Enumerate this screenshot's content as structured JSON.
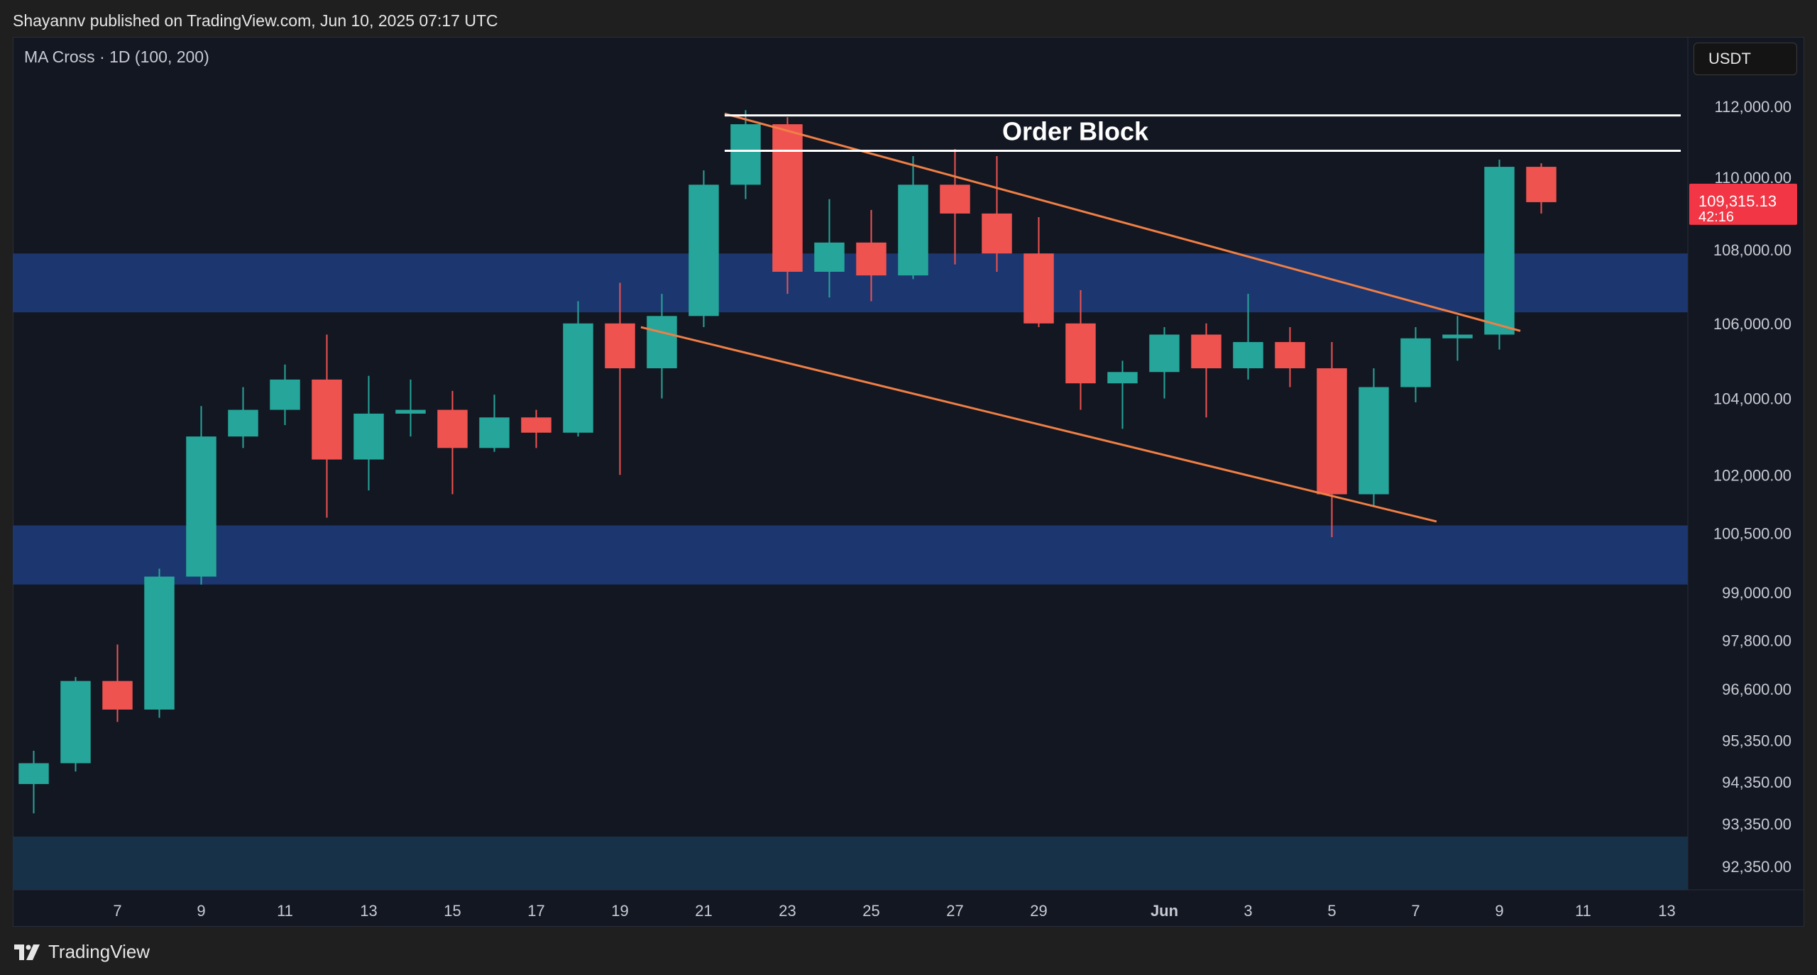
{
  "header": {
    "publisher_line": "Shayannv published on TradingView.com, Jun 10, 2025 07:17 UTC"
  },
  "indicator": {
    "label": "MA Cross · 1D (100, 200)"
  },
  "currency": {
    "label": "USDT"
  },
  "footer": {
    "brand": "TradingView"
  },
  "colors": {
    "background": "#131722",
    "bull": "#26a69a",
    "bear": "#ef5350",
    "zone": "#1e3a78",
    "lower_zone": "#17344d",
    "trendline": "#f07f45",
    "order_block_line": "#ffffff",
    "price_tag": "#f23645"
  },
  "chart_data": {
    "type": "candlestick",
    "title": "",
    "xlabel": "",
    "ylabel": "",
    "y_scale": "log",
    "ylim": [
      91800,
      114000
    ],
    "x_range": [
      "2025-05-05",
      "2025-06-14"
    ],
    "price_ticks": [
      "112,000.00",
      "110,000.00",
      "108,000.00",
      "106,000.00",
      "104,000.00",
      "102,000.00",
      "100,500.00",
      "99,000.00",
      "97,800.00",
      "96,600.00",
      "95,350.00",
      "94,350.00",
      "93,350.00",
      "92,350.00"
    ],
    "price_tick_values": [
      112000,
      110000,
      108000,
      106000,
      104000,
      102000,
      100500,
      99000,
      97800,
      96600,
      95350,
      94350,
      93350,
      92350
    ],
    "date_ticks": [
      {
        "date": "2025-05-07",
        "label": "7"
      },
      {
        "date": "2025-05-09",
        "label": "9"
      },
      {
        "date": "2025-05-11",
        "label": "11"
      },
      {
        "date": "2025-05-13",
        "label": "13"
      },
      {
        "date": "2025-05-15",
        "label": "15"
      },
      {
        "date": "2025-05-17",
        "label": "17"
      },
      {
        "date": "2025-05-19",
        "label": "19"
      },
      {
        "date": "2025-05-21",
        "label": "21"
      },
      {
        "date": "2025-05-23",
        "label": "23"
      },
      {
        "date": "2025-05-25",
        "label": "25"
      },
      {
        "date": "2025-05-27",
        "label": "27"
      },
      {
        "date": "2025-05-29",
        "label": "29"
      },
      {
        "date": "2025-06-01",
        "label": "Jun"
      },
      {
        "date": "2025-06-03",
        "label": "3"
      },
      {
        "date": "2025-06-05",
        "label": "5"
      },
      {
        "date": "2025-06-07",
        "label": "7"
      },
      {
        "date": "2025-06-09",
        "label": "9"
      },
      {
        "date": "2025-06-11",
        "label": "11"
      },
      {
        "date": "2025-06-13",
        "label": "13"
      }
    ],
    "last_price": {
      "label": "109,315.13",
      "value": 109315.13,
      "countdown": "42:16"
    },
    "annotations": [
      {
        "text": "Order Block"
      }
    ],
    "zones": [
      {
        "name": "upper-supply",
        "low": 106300,
        "high": 107900
      },
      {
        "name": "demand",
        "low": 99200,
        "high": 100700
      },
      {
        "name": "lower-demand",
        "low": 91800,
        "high": 93050
      }
    ],
    "order_block_lines": [
      {
        "start": "2025-05-22",
        "end": "2025-06-14",
        "price": 111750
      },
      {
        "start": "2025-05-22",
        "end": "2025-06-14",
        "price": 110750
      }
    ],
    "trendlines": [
      {
        "start": [
          "2025-05-22",
          111800
        ],
        "end": [
          "2025-06-10",
          105800
        ]
      },
      {
        "start": [
          "2025-05-20",
          105900
        ],
        "end": [
          "2025-06-08",
          100800
        ]
      }
    ],
    "candles": [
      {
        "date": "2025-05-05",
        "open": 94300,
        "high": 95100,
        "low": 93600,
        "close": 94800
      },
      {
        "date": "2025-05-06",
        "open": 94800,
        "high": 96900,
        "low": 94600,
        "close": 96800
      },
      {
        "date": "2025-05-07",
        "open": 96800,
        "high": 97700,
        "low": 95800,
        "close": 96100
      },
      {
        "date": "2025-05-08",
        "open": 96100,
        "high": 99600,
        "low": 95900,
        "close": 99400
      },
      {
        "date": "2025-05-09",
        "open": 99400,
        "high": 103800,
        "low": 99200,
        "close": 103000
      },
      {
        "date": "2025-05-10",
        "open": 103000,
        "high": 104300,
        "low": 102700,
        "close": 103700
      },
      {
        "date": "2025-05-11",
        "open": 103700,
        "high": 104900,
        "low": 103300,
        "close": 104500
      },
      {
        "date": "2025-05-12",
        "open": 104500,
        "high": 105700,
        "low": 100900,
        "close": 102400
      },
      {
        "date": "2025-05-13",
        "open": 102400,
        "high": 104600,
        "low": 101600,
        "close": 103600
      },
      {
        "date": "2025-05-14",
        "open": 103600,
        "high": 104500,
        "low": 103000,
        "close": 103700
      },
      {
        "date": "2025-05-15",
        "open": 103700,
        "high": 104200,
        "low": 101500,
        "close": 102700
      },
      {
        "date": "2025-05-16",
        "open": 102700,
        "high": 104100,
        "low": 102600,
        "close": 103500
      },
      {
        "date": "2025-05-17",
        "open": 103500,
        "high": 103700,
        "low": 102700,
        "close": 103100
      },
      {
        "date": "2025-05-18",
        "open": 103100,
        "high": 106600,
        "low": 103000,
        "close": 106000
      },
      {
        "date": "2025-05-19",
        "open": 106000,
        "high": 107100,
        "low": 102000,
        "close": 104800
      },
      {
        "date": "2025-05-20",
        "open": 104800,
        "high": 106800,
        "low": 104000,
        "close": 106200
      },
      {
        "date": "2025-05-21",
        "open": 106200,
        "high": 110200,
        "low": 105900,
        "close": 109800
      },
      {
        "date": "2025-05-22",
        "open": 109800,
        "high": 111900,
        "low": 109400,
        "close": 111500
      },
      {
        "date": "2025-05-23",
        "open": 111500,
        "high": 111700,
        "low": 106800,
        "close": 107400
      },
      {
        "date": "2025-05-24",
        "open": 107400,
        "high": 109400,
        "low": 106700,
        "close": 108200
      },
      {
        "date": "2025-05-25",
        "open": 108200,
        "high": 109100,
        "low": 106600,
        "close": 107300
      },
      {
        "date": "2025-05-26",
        "open": 107300,
        "high": 110600,
        "low": 107200,
        "close": 109800
      },
      {
        "date": "2025-05-27",
        "open": 109800,
        "high": 110800,
        "low": 107600,
        "close": 109000
      },
      {
        "date": "2025-05-28",
        "open": 109000,
        "high": 110600,
        "low": 107400,
        "close": 107900
      },
      {
        "date": "2025-05-29",
        "open": 107900,
        "high": 108900,
        "low": 105900,
        "close": 106000
      },
      {
        "date": "2025-05-30",
        "open": 106000,
        "high": 106900,
        "low": 103700,
        "close": 104400
      },
      {
        "date": "2025-05-31",
        "open": 104400,
        "high": 105000,
        "low": 103200,
        "close": 104700
      },
      {
        "date": "2025-06-01",
        "open": 104700,
        "high": 105900,
        "low": 104000,
        "close": 105700
      },
      {
        "date": "2025-06-02",
        "open": 105700,
        "high": 106000,
        "low": 103500,
        "close": 104800
      },
      {
        "date": "2025-06-03",
        "open": 104800,
        "high": 106800,
        "low": 104500,
        "close": 105500
      },
      {
        "date": "2025-06-04",
        "open": 105500,
        "high": 105900,
        "low": 104300,
        "close": 104800
      },
      {
        "date": "2025-06-05",
        "open": 104800,
        "high": 105500,
        "low": 100400,
        "close": 101500
      },
      {
        "date": "2025-06-06",
        "open": 101500,
        "high": 104800,
        "low": 101200,
        "close": 104300
      },
      {
        "date": "2025-06-07",
        "open": 104300,
        "high": 105900,
        "low": 103900,
        "close": 105600
      },
      {
        "date": "2025-06-08",
        "open": 105600,
        "high": 106200,
        "low": 105000,
        "close": 105700
      },
      {
        "date": "2025-06-09",
        "open": 105700,
        "high": 110500,
        "low": 105300,
        "close": 110300
      },
      {
        "date": "2025-06-10",
        "open": 110300,
        "high": 110400,
        "low": 109000,
        "close": 109315.13
      }
    ]
  }
}
